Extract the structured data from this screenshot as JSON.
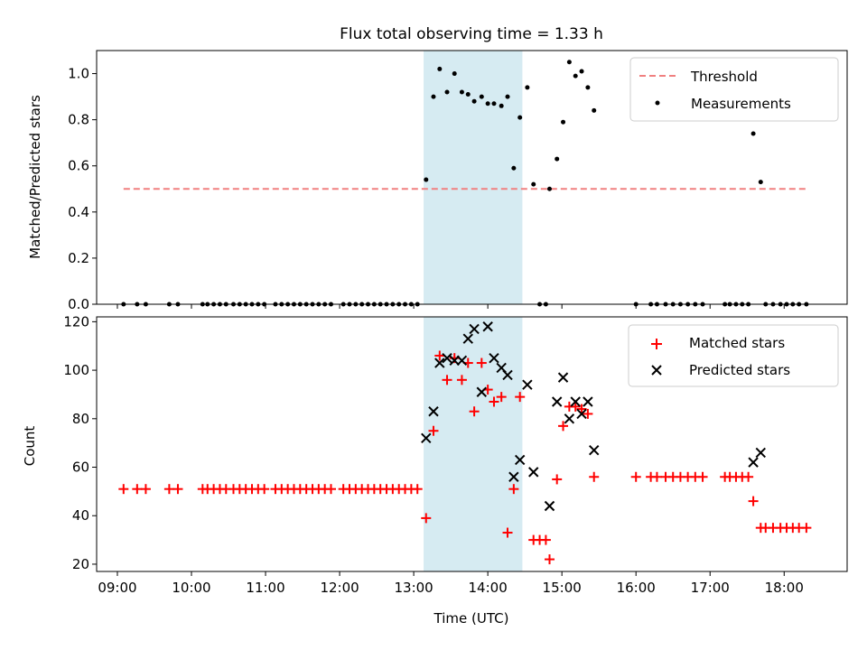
{
  "title": "Flux total observing time = 1.33 h",
  "xlabel": "Time (UTC)",
  "x_ticks": [
    "09:00",
    "10:00",
    "11:00",
    "12:00",
    "13:00",
    "14:00",
    "15:00",
    "16:00",
    "17:00",
    "18:00"
  ],
  "shade": {
    "start": "13:08",
    "end": "14:28",
    "color": "#add8e6"
  },
  "chart_data": [
    {
      "type": "scatter",
      "title": "Flux total observing time = 1.33 h",
      "ylabel": "Matched/Predicted stars",
      "ylim": [
        0,
        1.1
      ],
      "y_ticks": [
        "0.0",
        "0.2",
        "0.4",
        "0.6",
        "0.8",
        "1.0"
      ],
      "legend": {
        "position": "top-right",
        "entries": [
          "Threshold",
          "Measurements"
        ]
      },
      "threshold": {
        "name": "Threshold",
        "value": 0.5,
        "x_start": "09:05",
        "x_end": "18:20",
        "color": "#f08080"
      },
      "series": [
        {
          "name": "Measurements",
          "color": "#000000",
          "points": [
            [
              "09:05",
              0
            ],
            [
              "09:16",
              0
            ],
            [
              "09:23",
              0
            ],
            [
              "09:42",
              0
            ],
            [
              "09:49",
              0
            ],
            [
              "10:09",
              0
            ],
            [
              "10:13",
              0
            ],
            [
              "10:18",
              0
            ],
            [
              "10:23",
              0
            ],
            [
              "10:28",
              0
            ],
            [
              "10:34",
              0
            ],
            [
              "10:39",
              0
            ],
            [
              "10:44",
              0
            ],
            [
              "10:49",
              0
            ],
            [
              "10:54",
              0
            ],
            [
              "10:59",
              0
            ],
            [
              "11:08",
              0
            ],
            [
              "11:13",
              0
            ],
            [
              "11:18",
              0
            ],
            [
              "11:23",
              0
            ],
            [
              "11:28",
              0
            ],
            [
              "11:33",
              0
            ],
            [
              "11:38",
              0
            ],
            [
              "11:43",
              0
            ],
            [
              "11:48",
              0
            ],
            [
              "11:53",
              0
            ],
            [
              "12:03",
              0
            ],
            [
              "12:08",
              0
            ],
            [
              "12:13",
              0
            ],
            [
              "12:18",
              0
            ],
            [
              "12:23",
              0
            ],
            [
              "12:28",
              0
            ],
            [
              "12:33",
              0
            ],
            [
              "12:38",
              0
            ],
            [
              "12:43",
              0
            ],
            [
              "12:48",
              0
            ],
            [
              "12:53",
              0
            ],
            [
              "12:58",
              0
            ],
            [
              "13:03",
              0
            ],
            [
              "13:10",
              0.54
            ],
            [
              "13:16",
              0.9
            ],
            [
              "13:21",
              1.02
            ],
            [
              "13:27",
              0.92
            ],
            [
              "13:33",
              1.0
            ],
            [
              "13:39",
              0.92
            ],
            [
              "13:44",
              0.91
            ],
            [
              "13:49",
              0.88
            ],
            [
              "13:55",
              0.9
            ],
            [
              "14:00",
              0.87
            ],
            [
              "14:05",
              0.87
            ],
            [
              "14:11",
              0.86
            ],
            [
              "14:16",
              0.9
            ],
            [
              "14:21",
              0.59
            ],
            [
              "14:26",
              0.81
            ],
            [
              "14:32",
              0.94
            ],
            [
              "14:37",
              0.52
            ],
            [
              "14:42",
              0
            ],
            [
              "14:47",
              0
            ],
            [
              "14:50",
              0.5
            ],
            [
              "14:56",
              0.63
            ],
            [
              "15:01",
              0.79
            ],
            [
              "15:06",
              1.05
            ],
            [
              "15:11",
              0.99
            ],
            [
              "15:16",
              1.01
            ],
            [
              "15:21",
              0.94
            ],
            [
              "15:26",
              0.84
            ],
            [
              "16:00",
              0
            ],
            [
              "16:12",
              0
            ],
            [
              "16:17",
              0
            ],
            [
              "16:24",
              0
            ],
            [
              "16:30",
              0
            ],
            [
              "16:36",
              0
            ],
            [
              "16:42",
              0
            ],
            [
              "16:48",
              0
            ],
            [
              "16:54",
              0
            ],
            [
              "17:12",
              0
            ],
            [
              "17:16",
              0
            ],
            [
              "17:21",
              0
            ],
            [
              "17:26",
              0
            ],
            [
              "17:31",
              0
            ],
            [
              "17:35",
              0.74
            ],
            [
              "17:41",
              0.53
            ],
            [
              "17:45",
              0
            ],
            [
              "17:51",
              0
            ],
            [
              "17:57",
              0
            ],
            [
              "18:02",
              0
            ],
            [
              "18:07",
              0
            ],
            [
              "18:12",
              0
            ],
            [
              "18:18",
              0
            ]
          ]
        }
      ]
    },
    {
      "type": "scatter",
      "xlabel": "Time (UTC)",
      "ylabel": "Count",
      "ylim": [
        17,
        122
      ],
      "y_ticks": [
        "20",
        "40",
        "60",
        "80",
        "100",
        "120"
      ],
      "legend": {
        "position": "top-right",
        "entries": [
          "Matched stars",
          "Predicted stars"
        ]
      },
      "series": [
        {
          "name": "Matched stars",
          "marker": "+",
          "color": "#ff0000",
          "points": [
            [
              "09:05",
              51
            ],
            [
              "09:16",
              51
            ],
            [
              "09:23",
              51
            ],
            [
              "09:42",
              51
            ],
            [
              "09:49",
              51
            ],
            [
              "10:09",
              51
            ],
            [
              "10:13",
              51
            ],
            [
              "10:18",
              51
            ],
            [
              "10:23",
              51
            ],
            [
              "10:28",
              51
            ],
            [
              "10:34",
              51
            ],
            [
              "10:39",
              51
            ],
            [
              "10:44",
              51
            ],
            [
              "10:49",
              51
            ],
            [
              "10:54",
              51
            ],
            [
              "10:59",
              51
            ],
            [
              "11:08",
              51
            ],
            [
              "11:13",
              51
            ],
            [
              "11:18",
              51
            ],
            [
              "11:23",
              51
            ],
            [
              "11:28",
              51
            ],
            [
              "11:33",
              51
            ],
            [
              "11:38",
              51
            ],
            [
              "11:43",
              51
            ],
            [
              "11:48",
              51
            ],
            [
              "11:53",
              51
            ],
            [
              "12:03",
              51
            ],
            [
              "12:08",
              51
            ],
            [
              "12:13",
              51
            ],
            [
              "12:18",
              51
            ],
            [
              "12:23",
              51
            ],
            [
              "12:28",
              51
            ],
            [
              "12:33",
              51
            ],
            [
              "12:38",
              51
            ],
            [
              "12:43",
              51
            ],
            [
              "12:48",
              51
            ],
            [
              "12:53",
              51
            ],
            [
              "12:58",
              51
            ],
            [
              "13:03",
              51
            ],
            [
              "13:10",
              39
            ],
            [
              "13:16",
              75
            ],
            [
              "13:21",
              106
            ],
            [
              "13:27",
              96
            ],
            [
              "13:33",
              105
            ],
            [
              "13:39",
              96
            ],
            [
              "13:44",
              103
            ],
            [
              "13:49",
              83
            ],
            [
              "13:55",
              103
            ],
            [
              "14:00",
              92
            ],
            [
              "14:05",
              87
            ],
            [
              "14:11",
              89
            ],
            [
              "14:16",
              33
            ],
            [
              "14:21",
              51
            ],
            [
              "14:26",
              89
            ],
            [
              "14:37",
              30
            ],
            [
              "14:42",
              30
            ],
            [
              "14:47",
              30
            ],
            [
              "14:50",
              22
            ],
            [
              "14:56",
              55
            ],
            [
              "15:01",
              77
            ],
            [
              "15:06",
              85
            ],
            [
              "15:11",
              85
            ],
            [
              "15:16",
              84
            ],
            [
              "15:21",
              82
            ],
            [
              "15:26",
              56
            ],
            [
              "16:00",
              56
            ],
            [
              "16:12",
              56
            ],
            [
              "16:17",
              56
            ],
            [
              "16:24",
              56
            ],
            [
              "16:30",
              56
            ],
            [
              "16:36",
              56
            ],
            [
              "16:42",
              56
            ],
            [
              "16:48",
              56
            ],
            [
              "16:54",
              56
            ],
            [
              "17:12",
              56
            ],
            [
              "17:16",
              56
            ],
            [
              "17:21",
              56
            ],
            [
              "17:26",
              56
            ],
            [
              "17:31",
              56
            ],
            [
              "17:35",
              46
            ],
            [
              "17:41",
              35
            ],
            [
              "17:45",
              35
            ],
            [
              "17:51",
              35
            ],
            [
              "17:57",
              35
            ],
            [
              "18:02",
              35
            ],
            [
              "18:07",
              35
            ],
            [
              "18:12",
              35
            ],
            [
              "18:18",
              35
            ]
          ]
        },
        {
          "name": "Predicted stars",
          "marker": "x",
          "color": "#000000",
          "points": [
            [
              "13:10",
              72
            ],
            [
              "13:16",
              83
            ],
            [
              "13:21",
              103
            ],
            [
              "13:27",
              105
            ],
            [
              "13:33",
              104
            ],
            [
              "13:39",
              104
            ],
            [
              "13:44",
              113
            ],
            [
              "13:49",
              117
            ],
            [
              "13:55",
              91
            ],
            [
              "14:00",
              118
            ],
            [
              "14:05",
              105
            ],
            [
              "14:11",
              101
            ],
            [
              "14:16",
              98
            ],
            [
              "14:21",
              56
            ],
            [
              "14:26",
              63
            ],
            [
              "14:32",
              94
            ],
            [
              "14:37",
              58
            ],
            [
              "14:50",
              44
            ],
            [
              "14:56",
              87
            ],
            [
              "15:01",
              97
            ],
            [
              "15:06",
              80
            ],
            [
              "15:11",
              87
            ],
            [
              "15:16",
              82
            ],
            [
              "15:21",
              87
            ],
            [
              "15:26",
              67
            ],
            [
              "17:35",
              62
            ],
            [
              "17:41",
              66
            ]
          ]
        }
      ]
    }
  ]
}
